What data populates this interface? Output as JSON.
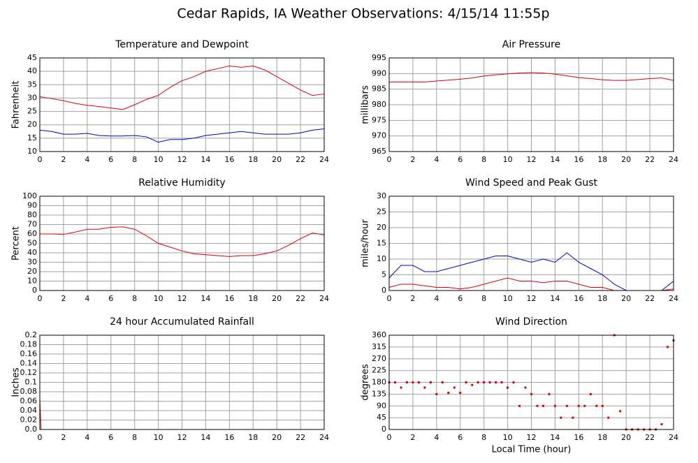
{
  "title": "Cedar Rapids, IA Weather Observations: 4/15/14 11:55p",
  "chart_data": [
    {
      "type": "line",
      "title": "Temperature and Dewpoint",
      "y_label": "Fahrenheit",
      "x": [
        0,
        1,
        2,
        3,
        4,
        5,
        6,
        7,
        8,
        9,
        10,
        11,
        12,
        13,
        14,
        15,
        16,
        17,
        18,
        19,
        20,
        21,
        22,
        23,
        24
      ],
      "xlim": [
        0,
        24
      ],
      "xticks": [
        0,
        2,
        4,
        6,
        8,
        10,
        12,
        14,
        16,
        18,
        20,
        22,
        24
      ],
      "ylim": [
        10,
        45
      ],
      "yticks": [
        10,
        15,
        20,
        25,
        30,
        35,
        40,
        45
      ],
      "grid": true,
      "series": [
        {
          "color": "#e00000",
          "values": [
            30.5,
            29.8,
            29,
            28,
            27.3,
            26.8,
            26.3,
            25.7,
            27.5,
            29.5,
            31,
            34,
            36.5,
            38,
            40,
            41,
            42,
            41.5,
            42,
            40.5,
            38,
            35.5,
            33,
            31,
            31.5
          ]
        },
        {
          "color": "#0000d0",
          "values": [
            18,
            17.5,
            16.5,
            16.5,
            16.8,
            16,
            15.8,
            15.8,
            16,
            15.5,
            13.5,
            14.5,
            14.5,
            15,
            16,
            16.5,
            17,
            17.5,
            17,
            16.5,
            16.5,
            16.5,
            17,
            18,
            18.5
          ]
        }
      ]
    },
    {
      "type": "line",
      "title": "Air Pressure",
      "y_label": "millibars",
      "x": [
        0,
        1,
        2,
        3,
        4,
        5,
        6,
        7,
        8,
        9,
        10,
        11,
        12,
        13,
        14,
        15,
        16,
        17,
        18,
        19,
        20,
        21,
        22,
        23,
        24
      ],
      "xlim": [
        0,
        24
      ],
      "xticks": [
        0,
        2,
        4,
        6,
        8,
        10,
        12,
        14,
        16,
        18,
        20,
        22,
        24
      ],
      "ylim": [
        965,
        995
      ],
      "yticks": [
        965,
        970,
        975,
        980,
        985,
        990,
        995
      ],
      "grid": true,
      "series": [
        {
          "color": "#e00000",
          "values": [
            987.3,
            987.3,
            987.3,
            987.3,
            987.6,
            987.9,
            988.2,
            988.6,
            989.2,
            989.6,
            989.9,
            990.2,
            990.3,
            990.2,
            989.8,
            989.3,
            988.7,
            988.4,
            988,
            987.8,
            987.8,
            988.1,
            988.4,
            988.6,
            987.8
          ]
        }
      ]
    },
    {
      "type": "line",
      "title": "Relative Humidity",
      "y_label": "Percent",
      "x": [
        0,
        1,
        2,
        3,
        4,
        5,
        6,
        7,
        8,
        9,
        10,
        11,
        12,
        13,
        14,
        15,
        16,
        17,
        18,
        19,
        20,
        21,
        22,
        23,
        24
      ],
      "xlim": [
        0,
        24
      ],
      "xticks": [
        0,
        2,
        4,
        6,
        8,
        10,
        12,
        14,
        16,
        18,
        20,
        22,
        24
      ],
      "ylim": [
        0,
        100
      ],
      "yticks": [
        0,
        10,
        20,
        30,
        40,
        50,
        60,
        70,
        80,
        90,
        100
      ],
      "grid": true,
      "series": [
        {
          "color": "#e00000",
          "values": [
            60,
            60,
            59.5,
            62,
            65,
            65,
            67,
            67.5,
            65,
            58,
            50,
            46,
            42,
            39,
            38,
            37,
            36,
            37,
            37,
            39,
            42,
            48,
            55,
            61,
            59
          ]
        }
      ]
    },
    {
      "type": "line",
      "title": "Wind Speed and Peak Gust",
      "y_label": "miles/hour",
      "x": [
        0,
        1,
        2,
        3,
        4,
        5,
        6,
        7,
        8,
        9,
        10,
        11,
        12,
        13,
        14,
        15,
        16,
        17,
        18,
        19,
        20,
        21,
        22,
        23,
        24
      ],
      "xlim": [
        0,
        24
      ],
      "xticks": [
        0,
        2,
        4,
        6,
        8,
        10,
        12,
        14,
        16,
        18,
        20,
        22,
        24
      ],
      "ylim": [
        0,
        30
      ],
      "yticks": [
        0,
        5,
        10,
        15,
        20,
        25,
        30
      ],
      "grid": true,
      "series": [
        {
          "color": "#0000d0",
          "values": [
            4,
            8,
            8,
            6,
            6,
            7,
            8,
            9,
            10,
            11,
            11,
            10,
            9,
            10,
            9,
            12,
            9,
            7,
            5,
            2,
            0,
            0,
            0,
            0,
            3
          ]
        },
        {
          "color": "#e00000",
          "values": [
            1,
            2,
            2,
            1.5,
            1,
            1,
            0.5,
            1,
            2,
            3,
            4,
            3,
            3,
            2.5,
            3,
            3,
            2,
            1,
            1,
            0,
            0,
            0,
            0,
            0,
            0.5
          ]
        }
      ]
    },
    {
      "type": "line",
      "title": "24 hour Accumulated Rainfall",
      "y_label": "Inches",
      "x": [
        0,
        0.1,
        24
      ],
      "xlim": [
        0,
        24
      ],
      "xticks": [
        0,
        2,
        4,
        6,
        8,
        10,
        12,
        14,
        16,
        18,
        20,
        22,
        24
      ],
      "ylim": [
        0,
        0.2
      ],
      "yticks": [
        {
          "value": 0,
          "label": "0.0"
        },
        0.02,
        0.04,
        0.06,
        0.08,
        0.1,
        0.12,
        0.14,
        0.16,
        0.18,
        0.2
      ],
      "grid": true,
      "series": [
        {
          "color": "#e00000",
          "values": [
            0.065,
            0,
            0
          ]
        }
      ]
    },
    {
      "type": "scatter",
      "title": "Wind Direction",
      "y_label": "degrees",
      "x_label": "Local Time (hour)",
      "x": [
        0,
        0.5,
        1,
        1.5,
        2,
        2.5,
        3,
        3.5,
        4,
        4.5,
        5,
        5.5,
        6,
        6.5,
        7,
        7.5,
        8,
        8.5,
        9,
        9.5,
        10,
        10.5,
        11,
        11.5,
        12,
        12.5,
        13,
        13.5,
        14,
        14.5,
        15,
        15.5,
        16,
        16.5,
        17,
        17.5,
        18,
        18.5,
        19,
        19.5,
        20,
        20.5,
        21,
        21.5,
        22,
        22.5,
        23,
        23.5,
        24
      ],
      "xlim": [
        0,
        24
      ],
      "xticks": [
        0,
        2,
        4,
        6,
        8,
        10,
        12,
        14,
        16,
        18,
        20,
        22,
        24
      ],
      "ylim": [
        0,
        360
      ],
      "yticks": [
        0,
        45,
        90,
        135,
        180,
        225,
        270,
        315,
        360
      ],
      "grid": true,
      "series": [
        {
          "color": "#e00000",
          "values": [
            180,
            180,
            160,
            180,
            180,
            180,
            160,
            180,
            135,
            180,
            140,
            160,
            140,
            180,
            170,
            180,
            180,
            180,
            180,
            180,
            160,
            180,
            90,
            160,
            135,
            90,
            90,
            135,
            90,
            45,
            90,
            45,
            90,
            90,
            135,
            90,
            90,
            45,
            360,
            70,
            0,
            0,
            0,
            0,
            0,
            0,
            20,
            315,
            340
          ]
        }
      ]
    }
  ]
}
